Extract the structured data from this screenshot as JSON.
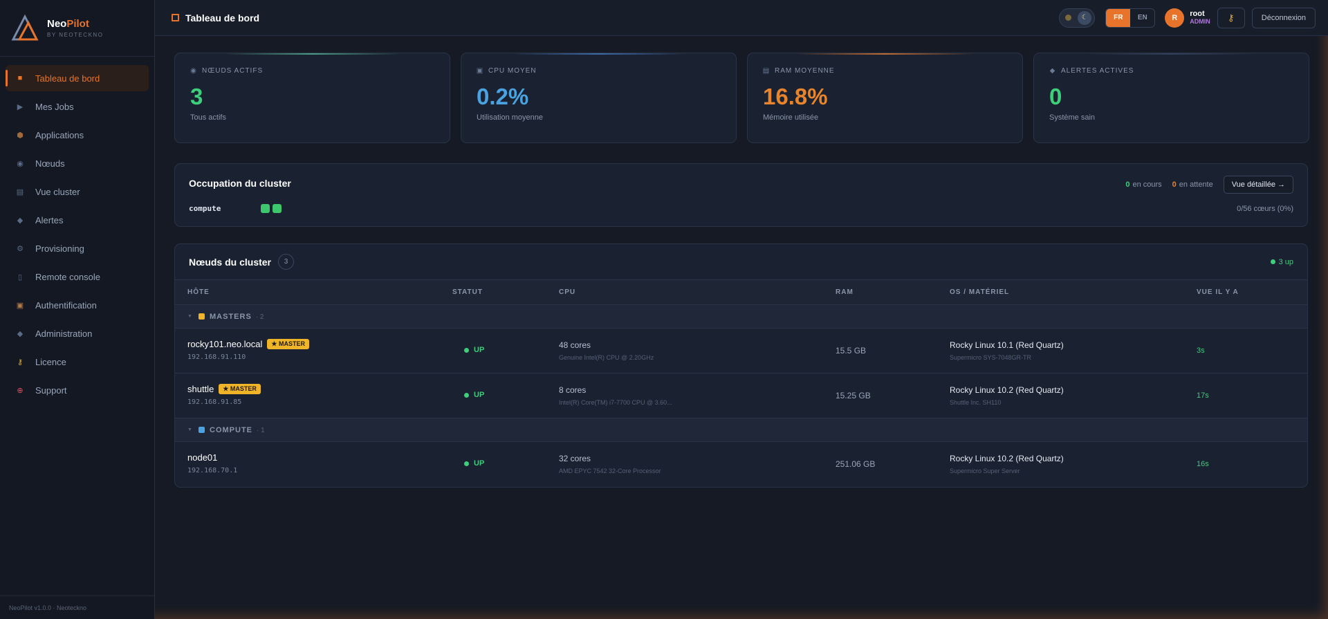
{
  "brand": {
    "name_a": "Neo",
    "name_b": "Pilot",
    "by": "BY NEOTECKNO"
  },
  "sidebar": {
    "items": [
      {
        "label": "Tableau de bord",
        "icon": "dashboard-icon"
      },
      {
        "label": "Mes Jobs",
        "icon": "play-icon"
      },
      {
        "label": "Applications",
        "icon": "cube-icon"
      },
      {
        "label": "Nœuds",
        "icon": "node-icon"
      },
      {
        "label": "Vue cluster",
        "icon": "grid-icon"
      },
      {
        "label": "Alertes",
        "icon": "diamond-icon"
      },
      {
        "label": "Provisioning",
        "icon": "gear-icon"
      },
      {
        "label": "Remote console",
        "icon": "terminal-icon"
      },
      {
        "label": "Authentification",
        "icon": "lock-icon"
      },
      {
        "label": "Administration",
        "icon": "diamond-icon"
      },
      {
        "label": "Licence",
        "icon": "key-icon"
      },
      {
        "label": "Support",
        "icon": "lifebuoy-icon"
      }
    ],
    "footer": "NeoPilot v1.0.0 · Neoteckno"
  },
  "topbar": {
    "title": "Tableau de bord",
    "lang_fr": "FR",
    "lang_en": "EN",
    "avatar_initial": "R",
    "username": "root",
    "role": "ADMIN",
    "logout": "Déconnexion"
  },
  "stats": [
    {
      "label": "NŒUDS ACTIFS",
      "value": "3",
      "sub": "Tous actifs",
      "color": "#3ecf7a"
    },
    {
      "label": "CPU MOYEN",
      "value": "0.2%",
      "sub": "Utilisation moyenne",
      "color": "#4aa3e0"
    },
    {
      "label": "RAM MOYENNE",
      "value": "16.8%",
      "sub": "Mémoire utilisée",
      "color": "#e8842b"
    },
    {
      "label": "ALERTES ACTIVES",
      "value": "0",
      "sub": "Système sain",
      "color": "#3ecf7a"
    }
  ],
  "occupation": {
    "title": "Occupation du cluster",
    "running_count": "0",
    "running_label": "en cours",
    "pending_count": "0",
    "pending_label": "en attente",
    "detail_button": "Vue détaillée →",
    "partition": "compute",
    "cores": "0/56 cœurs (0%)"
  },
  "nodes": {
    "title": "Nœuds du cluster",
    "count": "3",
    "up_label": "3 up",
    "columns": [
      "HÔTE",
      "STATUT",
      "CPU",
      "RAM",
      "OS / MATÉRIEL",
      "VUE IL Y A"
    ],
    "groups": [
      {
        "name": "MASTERS",
        "count": "· 2",
        "color": "#f0b429",
        "rows": [
          {
            "host": "rocky101.neo.local",
            "badge": "★ MASTER",
            "ip": "192.168.91.110",
            "status": "UP",
            "cpu": "48 cores",
            "cpu_model": "Genuine Intel(R) CPU @ 2.20GHz",
            "ram": "15.5 GB",
            "os": "Rocky Linux 10.1 (Red Quartz)",
            "hw": "Supermicro SYS-7048GR-TR",
            "seen": "3s"
          },
          {
            "host": "shuttle",
            "badge": "★ MASTER",
            "ip": "192.168.91.85",
            "status": "UP",
            "cpu": "8 cores",
            "cpu_model": "Intel(R) Core(TM) i7-7700 CPU @ 3.60...",
            "ram": "15.25 GB",
            "os": "Rocky Linux 10.2 (Red Quartz)",
            "hw": "Shuttle Inc. SH110",
            "seen": "17s"
          }
        ]
      },
      {
        "name": "COMPUTE",
        "count": "· 1",
        "color": "#4aa3e0",
        "rows": [
          {
            "host": "node01",
            "badge": "",
            "ip": "192.168.70.1",
            "status": "UP",
            "cpu": "32 cores",
            "cpu_model": "AMD EPYC 7542 32-Core Processor",
            "ram": "251.06 GB",
            "os": "Rocky Linux 10.2 (Red Quartz)",
            "hw": "Supermicro Super Server",
            "seen": "16s"
          }
        ]
      }
    ]
  }
}
